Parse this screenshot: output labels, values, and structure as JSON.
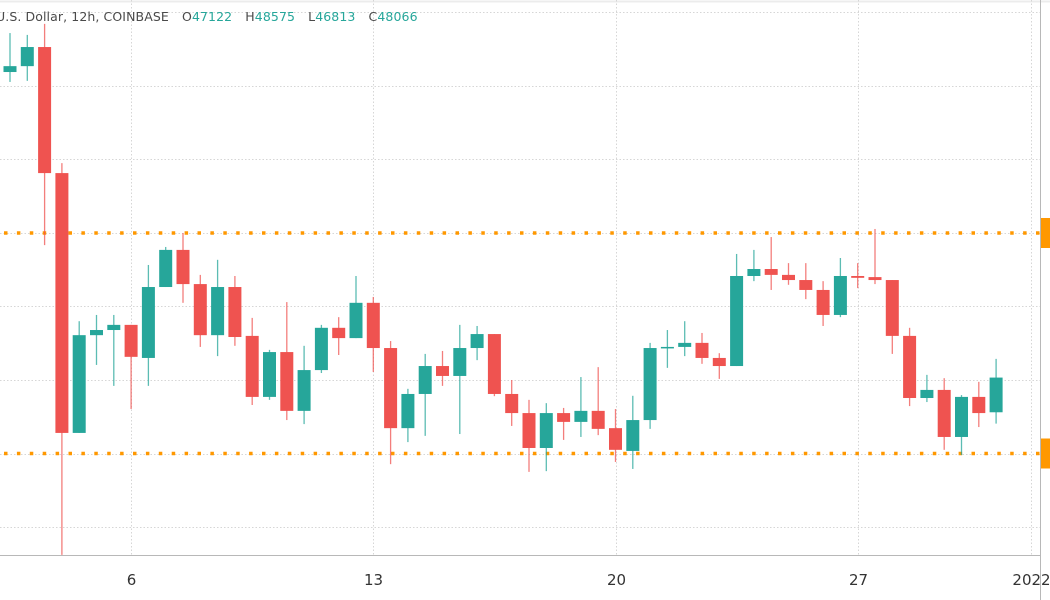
{
  "legend": {
    "symbol": "U.S. Dollar, 12h, COINBASE",
    "o_label": "O",
    "o": "47122",
    "h_label": "H",
    "h": "48575",
    "l_label": "L",
    "l": "46813",
    "c_label": "C",
    "c": "48066"
  },
  "chart_data": {
    "type": "candlestick",
    "interval": "12h",
    "exchange": "COINBASE",
    "quote": "U.S. Dollar",
    "x_ticks": [
      "6",
      "13",
      "20",
      "27",
      "2022"
    ],
    "y_gridlines": [
      44000,
      46000,
      48000,
      50000,
      52000,
      54000,
      56000,
      58000
    ],
    "ylim": [
      43200,
      58400
    ],
    "grid": true,
    "horizontal_levels": [
      {
        "price": 52000,
        "color": "#ff9800",
        "style": "dotted"
      },
      {
        "price": 46000,
        "color": "#ff9800",
        "style": "dotted"
      }
    ],
    "colors": {
      "up": "#26a69a",
      "down": "#ef5350",
      "level": "#ff9800",
      "grid": "#d6d6d6"
    },
    "candles_ohlc": [
      [
        56380,
        57440,
        56110,
        56540
      ],
      [
        56540,
        57390,
        56140,
        57060
      ],
      [
        57060,
        57690,
        51670,
        53630
      ],
      [
        53630,
        53900,
        43240,
        46560
      ],
      [
        46560,
        49600,
        46560,
        49220
      ],
      [
        49220,
        49770,
        48410,
        49360
      ],
      [
        49360,
        49770,
        47840,
        49500
      ],
      [
        49500,
        49500,
        47210,
        48630
      ],
      [
        48600,
        51130,
        47840,
        50530
      ],
      [
        50530,
        51620,
        50530,
        51540
      ],
      [
        51540,
        52000,
        50100,
        50610
      ],
      [
        50610,
        50860,
        48900,
        49220
      ],
      [
        49220,
        51270,
        48650,
        50530
      ],
      [
        50530,
        50830,
        48930,
        49170
      ],
      [
        49200,
        49690,
        47320,
        47540
      ],
      [
        47540,
        48820,
        47460,
        48760
      ],
      [
        48760,
        50120,
        46910,
        47160
      ],
      [
        47160,
        48930,
        46800,
        48270
      ],
      [
        48270,
        49500,
        48190,
        49420
      ],
      [
        49420,
        49710,
        48680,
        49140
      ],
      [
        49140,
        50830,
        49140,
        50100
      ],
      [
        50100,
        50260,
        48220,
        48870
      ],
      [
        48870,
        49060,
        45710,
        46690
      ],
      [
        46690,
        47760,
        46310,
        47620
      ],
      [
        47620,
        48710,
        46480,
        48380
      ],
      [
        48380,
        48790,
        47840,
        48110
      ],
      [
        48110,
        49500,
        46530,
        48870
      ],
      [
        48870,
        49470,
        48540,
        49250
      ],
      [
        49250,
        49250,
        47560,
        47620
      ],
      [
        47620,
        48000,
        46750,
        47100
      ],
      [
        47100,
        47460,
        45500,
        46150
      ],
      [
        46150,
        47370,
        45520,
        47100
      ],
      [
        47100,
        47240,
        46370,
        46860
      ],
      [
        46860,
        48080,
        46450,
        47160
      ],
      [
        47160,
        48350,
        46500,
        46670
      ],
      [
        46690,
        47210,
        45770,
        46100
      ],
      [
        46070,
        47570,
        45580,
        46910
      ],
      [
        46910,
        49010,
        46670,
        48870
      ],
      [
        48870,
        49360,
        48330,
        48900
      ],
      [
        48900,
        49600,
        48650,
        49010
      ],
      [
        49010,
        49280,
        48440,
        48600
      ],
      [
        48600,
        48730,
        48030,
        48380
      ],
      [
        48380,
        51430,
        48380,
        50830
      ],
      [
        50830,
        51540,
        50690,
        51020
      ],
      [
        51020,
        51890,
        50450,
        50860
      ],
      [
        50860,
        51180,
        50590,
        50720
      ],
      [
        50720,
        51180,
        50200,
        50450
      ],
      [
        50450,
        50690,
        49470,
        49770
      ],
      [
        49770,
        51320,
        49710,
        50830
      ],
      [
        50830,
        51180,
        50500,
        50780
      ],
      [
        50800,
        52110,
        50610,
        50720
      ],
      [
        50720,
        50720,
        48710,
        49200
      ],
      [
        49200,
        49420,
        47290,
        47510
      ],
      [
        47510,
        48140,
        47400,
        47730
      ],
      [
        47730,
        48050,
        46100,
        46450
      ],
      [
        46450,
        47590,
        45960,
        47540
      ],
      [
        47540,
        47950,
        46720,
        47100
      ],
      [
        47122,
        48575,
        46813,
        48066
      ]
    ]
  }
}
